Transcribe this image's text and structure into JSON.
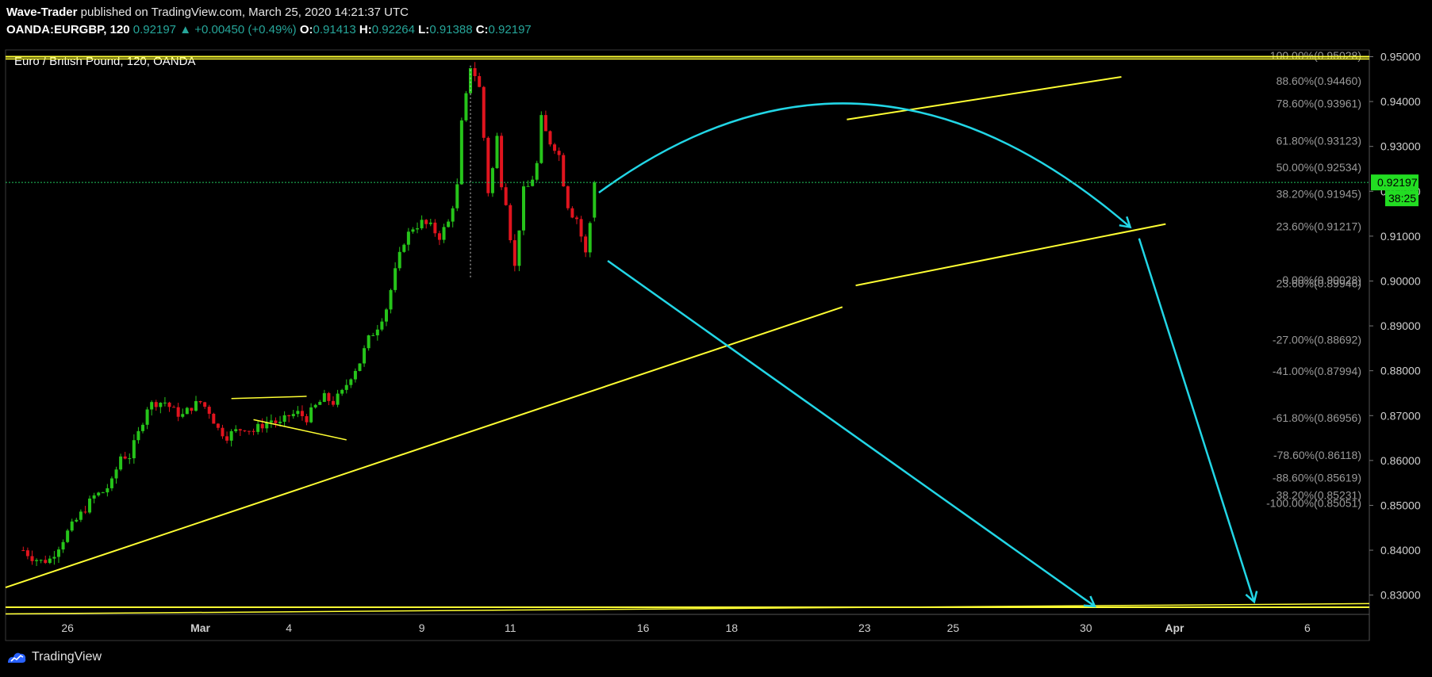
{
  "header": {
    "publisher": "Wave-Trader",
    "published_text": "published on TradingView.com, March 25, 2020 14:21:37 UTC",
    "symbol": "OANDA:EURGBP, 120",
    "last": "0.92197",
    "change_arrow": "▲",
    "change": "+0.00450 (+0.49%)",
    "o_label": "O:",
    "o": "0.91413",
    "h_label": "H:",
    "h": "0.92264",
    "l_label": "L:",
    "l": "0.91388",
    "c_label": "C:",
    "c": "0.92197"
  },
  "footer": {
    "brand": "TradingView",
    "logo_icon": "tradingview-logo-icon"
  },
  "chart_data": {
    "type": "candlestick",
    "title": "Euro / British Pound, 120, OANDA",
    "y_ticks": [
      "0.95000",
      "0.94000",
      "0.93000",
      "0.92000",
      "0.91000",
      "0.90000",
      "0.89000",
      "0.88000",
      "0.87000",
      "0.86000",
      "0.85000",
      "0.84000",
      "0.83000"
    ],
    "x_ticks": [
      "26",
      "Mar",
      "4",
      "9",
      "11",
      "16",
      "18",
      "23",
      "25",
      "30",
      "Apr",
      "6"
    ],
    "price_label": "0.92197",
    "countdown_label": "38:25",
    "fib_labels": [
      {
        "text": "100.00%(0.95028)",
        "price": 0.95028
      },
      {
        "text": "88.60%(0.94460)",
        "price": 0.9446
      },
      {
        "text": "78.60%(0.93961)",
        "price": 0.93961
      },
      {
        "text": "61.80%(0.93123)",
        "price": 0.93123
      },
      {
        "text": "50.00%(0.92534)",
        "price": 0.92534
      },
      {
        "text": "38.20%(0.91945)",
        "price": 0.91945
      },
      {
        "text": "23.60%(0.91217)",
        "price": 0.91217
      },
      {
        "text": "0.00%(0.90028)",
        "price": 0.90028
      },
      {
        "text": "23.60%(0.89946)",
        "price": 0.89946
      },
      {
        "text": "-27.00%(0.88692)",
        "price": 0.88692
      },
      {
        "text": "-41.00%(0.87994)",
        "price": 0.87994
      },
      {
        "text": "-61.80%(0.86956)",
        "price": 0.86956
      },
      {
        "text": "-78.60%(0.86118)",
        "price": 0.86118
      },
      {
        "text": "-88.60%(0.85619)",
        "price": 0.85619
      },
      {
        "text": "38.20%(0.85231)",
        "price": 0.85231
      },
      {
        "text": "-100.00%(0.85051)",
        "price": 0.85051
      }
    ],
    "colors": {
      "up": "#26c41a",
      "down": "#e0141e",
      "trend": "#ffff33",
      "projection": "#22d6e6",
      "price_line": "#22c55e",
      "label_bg": "#22dd22"
    },
    "close_waypoints": [
      [
        0,
        0.84
      ],
      [
        2,
        0.8385
      ],
      [
        4,
        0.8375
      ],
      [
        6,
        0.838
      ],
      [
        8,
        0.841
      ],
      [
        10,
        0.844
      ],
      [
        13,
        0.848
      ],
      [
        16,
        0.852
      ],
      [
        18,
        0.853
      ],
      [
        20,
        0.855
      ],
      [
        22,
        0.861
      ],
      [
        24,
        0.861
      ],
      [
        26,
        0.866
      ],
      [
        28,
        0.872
      ],
      [
        30,
        0.873
      ],
      [
        32,
        0.873
      ],
      [
        34,
        0.871
      ],
      [
        36,
        0.87
      ],
      [
        38,
        0.872
      ],
      [
        40,
        0.873
      ],
      [
        42,
        0.871
      ],
      [
        44,
        0.867
      ],
      [
        46,
        0.8655
      ],
      [
        48,
        0.8665
      ],
      [
        50,
        0.8675
      ],
      [
        52,
        0.8665
      ],
      [
        54,
        0.868
      ],
      [
        56,
        0.869
      ],
      [
        58,
        0.868
      ],
      [
        60,
        0.87
      ],
      [
        62,
        0.8705
      ],
      [
        64,
        0.8695
      ],
      [
        66,
        0.872
      ],
      [
        68,
        0.874
      ],
      [
        70,
        0.873
      ],
      [
        72,
        0.875
      ],
      [
        74,
        0.879
      ],
      [
        76,
        0.882
      ],
      [
        78,
        0.887
      ],
      [
        80,
        0.89
      ],
      [
        82,
        0.894
      ],
      [
        84,
        0.902
      ],
      [
        86,
        0.909
      ],
      [
        88,
        0.912
      ],
      [
        90,
        0.913
      ],
      [
        92,
        0.912
      ],
      [
        94,
        0.91
      ],
      [
        96,
        0.913
      ],
      [
        98,
        0.921
      ],
      [
        99,
        0.935
      ],
      [
        100,
        0.941
      ],
      [
        101,
        0.948
      ],
      [
        102,
        0.946
      ],
      [
        103,
        0.943
      ],
      [
        104,
        0.932
      ],
      [
        105,
        0.92
      ],
      [
        106,
        0.925
      ],
      [
        107,
        0.932
      ],
      [
        108,
        0.922
      ],
      [
        109,
        0.918
      ],
      [
        110,
        0.91
      ],
      [
        111,
        0.903
      ],
      [
        112,
        0.912
      ],
      [
        113,
        0.92
      ],
      [
        114,
        0.921
      ],
      [
        115,
        0.923
      ],
      [
        116,
        0.926
      ],
      [
        117,
        0.936
      ],
      [
        118,
        0.933
      ],
      [
        119,
        0.931
      ],
      [
        120,
        0.93
      ],
      [
        121,
        0.928
      ],
      [
        122,
        0.922
      ],
      [
        123,
        0.917
      ],
      [
        124,
        0.915
      ],
      [
        125,
        0.914
      ],
      [
        126,
        0.91
      ],
      [
        127,
        0.906
      ],
      [
        128,
        0.913
      ],
      [
        129,
        0.92197
      ]
    ],
    "x_tick_index": [
      10,
      40,
      60,
      90,
      110,
      140,
      160,
      190,
      210,
      240,
      260,
      290
    ],
    "x_domain": [
      -4,
      304
    ],
    "y_domain": [
      0.8257,
      0.9515
    ]
  }
}
